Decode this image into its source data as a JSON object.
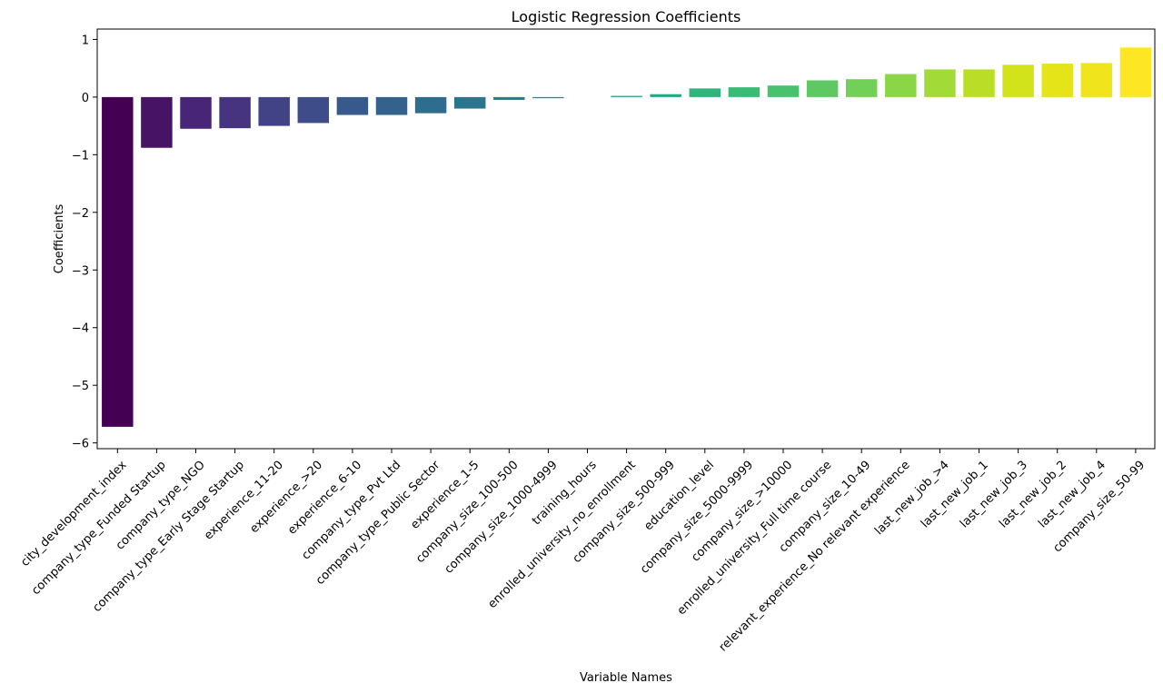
{
  "chart_data": {
    "type": "bar",
    "title": "Logistic Regression Coefficients",
    "xlabel": "Variable Names",
    "ylabel": "Coefficients",
    "ylim": [
      -6.1,
      1.18
    ],
    "yticks": [
      1,
      0,
      -1,
      -2,
      -3,
      -4,
      -5,
      -6
    ],
    "ytick_labels": [
      "1",
      "0",
      "−1",
      "−2",
      "−3",
      "−4",
      "−5",
      "−6"
    ],
    "grid": false,
    "palette": "viridis",
    "categories": [
      "city_development_index",
      "company_type_Funded Startup",
      "company_type_NGO",
      "company_type_Early Stage Startup",
      "experience_11-20",
      "experience_>20",
      "experience_6-10",
      "company_type_Pvt Ltd",
      "company_type_Public Sector",
      "experience_1-5",
      "company_size_100-500",
      "company_size_1000-4999",
      "training_hours",
      "enrolled_university_no_enrollment",
      "company_size_500-999",
      "education_level",
      "company_size_5000-9999",
      "company_size_>10000",
      "enrolled_university_Full time course",
      "company_size_10-49",
      "relevant_experience_No relevant experience",
      "last_new_job_>4",
      "last_new_job_1",
      "last_new_job_3",
      "last_new_job_2",
      "last_new_job_4",
      "company_size_50-99"
    ],
    "values": [
      -5.72,
      -0.88,
      -0.55,
      -0.54,
      -0.5,
      -0.45,
      -0.31,
      -0.31,
      -0.28,
      -0.2,
      -0.05,
      -0.02,
      0.0,
      0.02,
      0.05,
      0.15,
      0.17,
      0.2,
      0.29,
      0.31,
      0.4,
      0.48,
      0.48,
      0.56,
      0.58,
      0.59,
      0.86
    ],
    "colors": [
      "#440154",
      "#471365",
      "#482576",
      "#463480",
      "#424286",
      "#3e4c8a",
      "#38598c",
      "#33628d",
      "#2e6d8e",
      "#2a768e",
      "#26818e",
      "#228a8d",
      "#1f948c",
      "#1f9e89",
      "#24a884",
      "#2fb47c",
      "#3bbb75",
      "#4ac16d",
      "#5ec962",
      "#73d056",
      "#8bd646",
      "#a2da37",
      "#bade28",
      "#d2e21b",
      "#e5e419",
      "#f0e51c",
      "#fde725"
    ]
  }
}
